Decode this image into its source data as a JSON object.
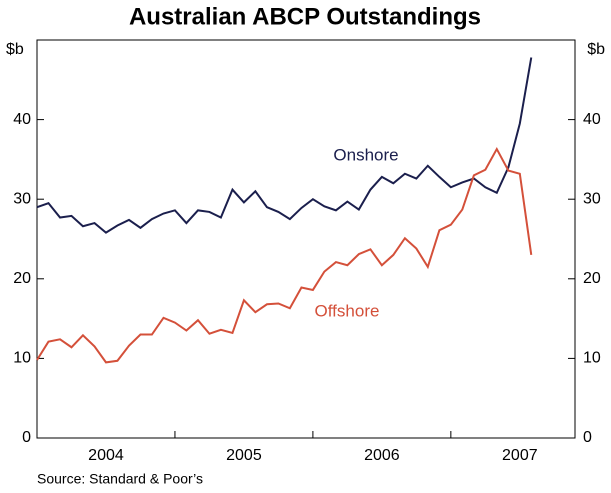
{
  "chart_data": {
    "type": "line",
    "title": "Australian ABCP Outstandings",
    "y_unit_label": "$b",
    "source": "Source: Standard & Poor’s",
    "x": [
      2004.0,
      2004.083,
      2004.167,
      2004.25,
      2004.333,
      2004.417,
      2004.5,
      2004.583,
      2004.667,
      2004.75,
      2004.833,
      2004.917,
      2005.0,
      2005.083,
      2005.167,
      2005.25,
      2005.333,
      2005.417,
      2005.5,
      2005.583,
      2005.667,
      2005.75,
      2005.833,
      2005.917,
      2006.0,
      2006.083,
      2006.167,
      2006.25,
      2006.333,
      2006.417,
      2006.5,
      2006.583,
      2006.667,
      2006.75,
      2006.833,
      2006.917,
      2007.0,
      2007.083,
      2007.167,
      2007.25,
      2007.333,
      2007.417,
      2007.5,
      2007.583
    ],
    "series": [
      {
        "name": "Onshore",
        "color": "#1b1f4d",
        "values": [
          29.0,
          29.5,
          27.7,
          27.9,
          26.6,
          27.0,
          25.8,
          26.7,
          27.4,
          26.4,
          27.5,
          28.2,
          28.6,
          27.0,
          28.6,
          28.4,
          27.7,
          31.2,
          29.6,
          31.0,
          29.0,
          28.4,
          27.5,
          28.9,
          30.0,
          29.1,
          28.6,
          29.7,
          28.7,
          31.2,
          32.8,
          32.0,
          33.2,
          32.6,
          34.2,
          32.8,
          31.5,
          32.1,
          32.6,
          31.5,
          30.8,
          34.0,
          39.5,
          47.8
        ]
      },
      {
        "name": "Offshore",
        "color": "#d4503a",
        "values": [
          9.8,
          12.1,
          12.4,
          11.4,
          12.9,
          11.5,
          9.5,
          9.7,
          11.6,
          13.0,
          13.0,
          15.1,
          14.5,
          13.5,
          14.8,
          13.1,
          13.6,
          13.2,
          17.3,
          15.8,
          16.8,
          16.9,
          16.3,
          18.9,
          18.6,
          20.9,
          22.1,
          21.7,
          23.1,
          23.7,
          21.7,
          23.0,
          25.1,
          23.8,
          21.5,
          26.1,
          26.8,
          28.7,
          33.0,
          33.7,
          36.3,
          33.6,
          33.2,
          23.0
        ]
      }
    ],
    "xlim": [
      2004.0,
      2007.9
    ],
    "xticks": [
      {
        "value": 2004.5,
        "label": "2004"
      },
      {
        "value": 2005.5,
        "label": "2005"
      },
      {
        "value": 2006.5,
        "label": "2006"
      },
      {
        "value": 2007.5,
        "label": "2007"
      }
    ],
    "xtick_marks": [
      2005,
      2006,
      2007
    ],
    "ylim": [
      0,
      50
    ],
    "yticks": [
      0,
      10,
      20,
      30,
      40
    ]
  }
}
